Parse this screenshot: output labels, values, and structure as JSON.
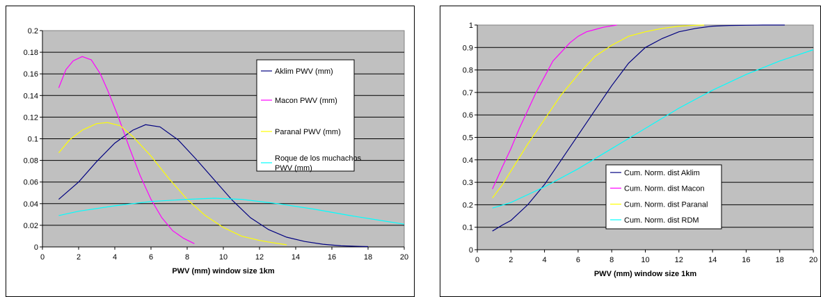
{
  "chart_data": [
    {
      "type": "line",
      "title": "",
      "xlabel": "PWV (mm) window size 1km",
      "ylabel": "",
      "xlim": [
        0,
        20
      ],
      "ylim": [
        0,
        0.2
      ],
      "xticks": [
        "0",
        "2",
        "4",
        "6",
        "8",
        "10",
        "12",
        "14",
        "16",
        "18",
        "20"
      ],
      "yticks": [
        "0",
        "0.02",
        "0.04",
        "0.06",
        "0.08",
        "0.1",
        "0.12",
        "0.14",
        "0.16",
        "0.18",
        "0.2"
      ],
      "grid": "horizontal",
      "legend": "right",
      "series": [
        {
          "name": "Aklim PWV (mm)",
          "color": "#000080",
          "x": [
            0.9,
            2,
            3,
            4,
            5,
            5.7,
            6.5,
            7.5,
            8.5,
            9.5,
            10.5,
            11.5,
            12.5,
            13.5,
            14.5,
            15.5,
            16.5,
            17.5,
            18
          ],
          "y": [
            0.044,
            0.06,
            0.079,
            0.096,
            0.108,
            0.113,
            0.111,
            0.099,
            0.081,
            0.062,
            0.043,
            0.027,
            0.016,
            0.009,
            0.005,
            0.0025,
            0.001,
            0.0005,
            0.0003
          ]
        },
        {
          "name": "Macon PWV (mm)",
          "color": "#ff00ff",
          "x": [
            0.9,
            1.3,
            1.7,
            2.2,
            2.7,
            3.2,
            3.6,
            4.2,
            4.8,
            5.4,
            6.0,
            6.6,
            7.2,
            7.8,
            8.4
          ],
          "y": [
            0.147,
            0.164,
            0.172,
            0.176,
            0.173,
            0.16,
            0.145,
            0.12,
            0.092,
            0.066,
            0.044,
            0.027,
            0.015,
            0.008,
            0.003
          ]
        },
        {
          "name": "Paranal PWV (mm)",
          "color": "#ffff00",
          "x": [
            0.9,
            1.5,
            2.2,
            3.0,
            3.6,
            4.3,
            5.0,
            6.0,
            7.0,
            8.0,
            9.0,
            10.0,
            11.0,
            12.0,
            12.7,
            13.5
          ],
          "y": [
            0.087,
            0.099,
            0.108,
            0.114,
            0.115,
            0.112,
            0.102,
            0.084,
            0.063,
            0.044,
            0.029,
            0.018,
            0.01,
            0.006,
            0.004,
            0.002
          ]
        },
        {
          "name": "Roque de los muchachos PWV (mm)",
          "color": "#00ffff",
          "x": [
            0.9,
            2,
            4,
            6,
            8,
            9.5,
            11,
            13,
            15,
            17,
            18.5,
            20
          ],
          "y": [
            0.029,
            0.033,
            0.038,
            0.042,
            0.044,
            0.045,
            0.044,
            0.04,
            0.035,
            0.029,
            0.025,
            0.021
          ]
        }
      ]
    },
    {
      "type": "line",
      "title": "",
      "xlabel": "PWV (mm) window size 1km",
      "ylabel": "",
      "xlim": [
        0,
        20
      ],
      "ylim": [
        0,
        1
      ],
      "xticks": [
        "0",
        "2",
        "4",
        "6",
        "8",
        "10",
        "12",
        "14",
        "16",
        "18",
        "20"
      ],
      "yticks": [
        "0",
        "0.1",
        "0.2",
        "0.3",
        "0.4",
        "0.5",
        "0.6",
        "0.7",
        "0.8",
        "0.9",
        "1"
      ],
      "grid": "horizontal",
      "legend": "bottom-left",
      "series": [
        {
          "name": "Cum. Norm. dist Aklim",
          "color": "#000080",
          "x": [
            0.9,
            1.5,
            2,
            3,
            4,
            5,
            6,
            7,
            8,
            9,
            10,
            11,
            12,
            13,
            14,
            15,
            16,
            17,
            18.3
          ],
          "y": [
            0.083,
            0.11,
            0.13,
            0.2,
            0.29,
            0.4,
            0.51,
            0.62,
            0.73,
            0.83,
            0.9,
            0.94,
            0.97,
            0.985,
            0.995,
            0.998,
            0.999,
            1.0,
            1.0
          ]
        },
        {
          "name": "Cum. Norm. dist Macon",
          "color": "#ff00ff",
          "x": [
            0.9,
            1.5,
            2,
            2.5,
            3,
            3.5,
            4,
            4.5,
            5,
            5.5,
            6,
            6.5,
            7,
            7.5,
            8.3
          ],
          "y": [
            0.27,
            0.37,
            0.45,
            0.54,
            0.62,
            0.7,
            0.77,
            0.84,
            0.88,
            0.92,
            0.95,
            0.97,
            0.98,
            0.99,
            1.0
          ]
        },
        {
          "name": "Cum. Norm. dist Paranal",
          "color": "#ffff00",
          "x": [
            0.9,
            1.5,
            2,
            3,
            4,
            5,
            6,
            7,
            8,
            9,
            10,
            11,
            12,
            13,
            13.5
          ],
          "y": [
            0.23,
            0.29,
            0.35,
            0.47,
            0.58,
            0.69,
            0.78,
            0.86,
            0.91,
            0.95,
            0.97,
            0.985,
            0.995,
            0.999,
            1.0
          ]
        },
        {
          "name": "Cum. Norm. dist RDM",
          "color": "#00ffff",
          "x": [
            0.9,
            2,
            4,
            6,
            8,
            10,
            12,
            14,
            16,
            18,
            20
          ],
          "y": [
            0.185,
            0.21,
            0.28,
            0.36,
            0.45,
            0.54,
            0.63,
            0.71,
            0.78,
            0.84,
            0.89
          ]
        }
      ]
    }
  ]
}
